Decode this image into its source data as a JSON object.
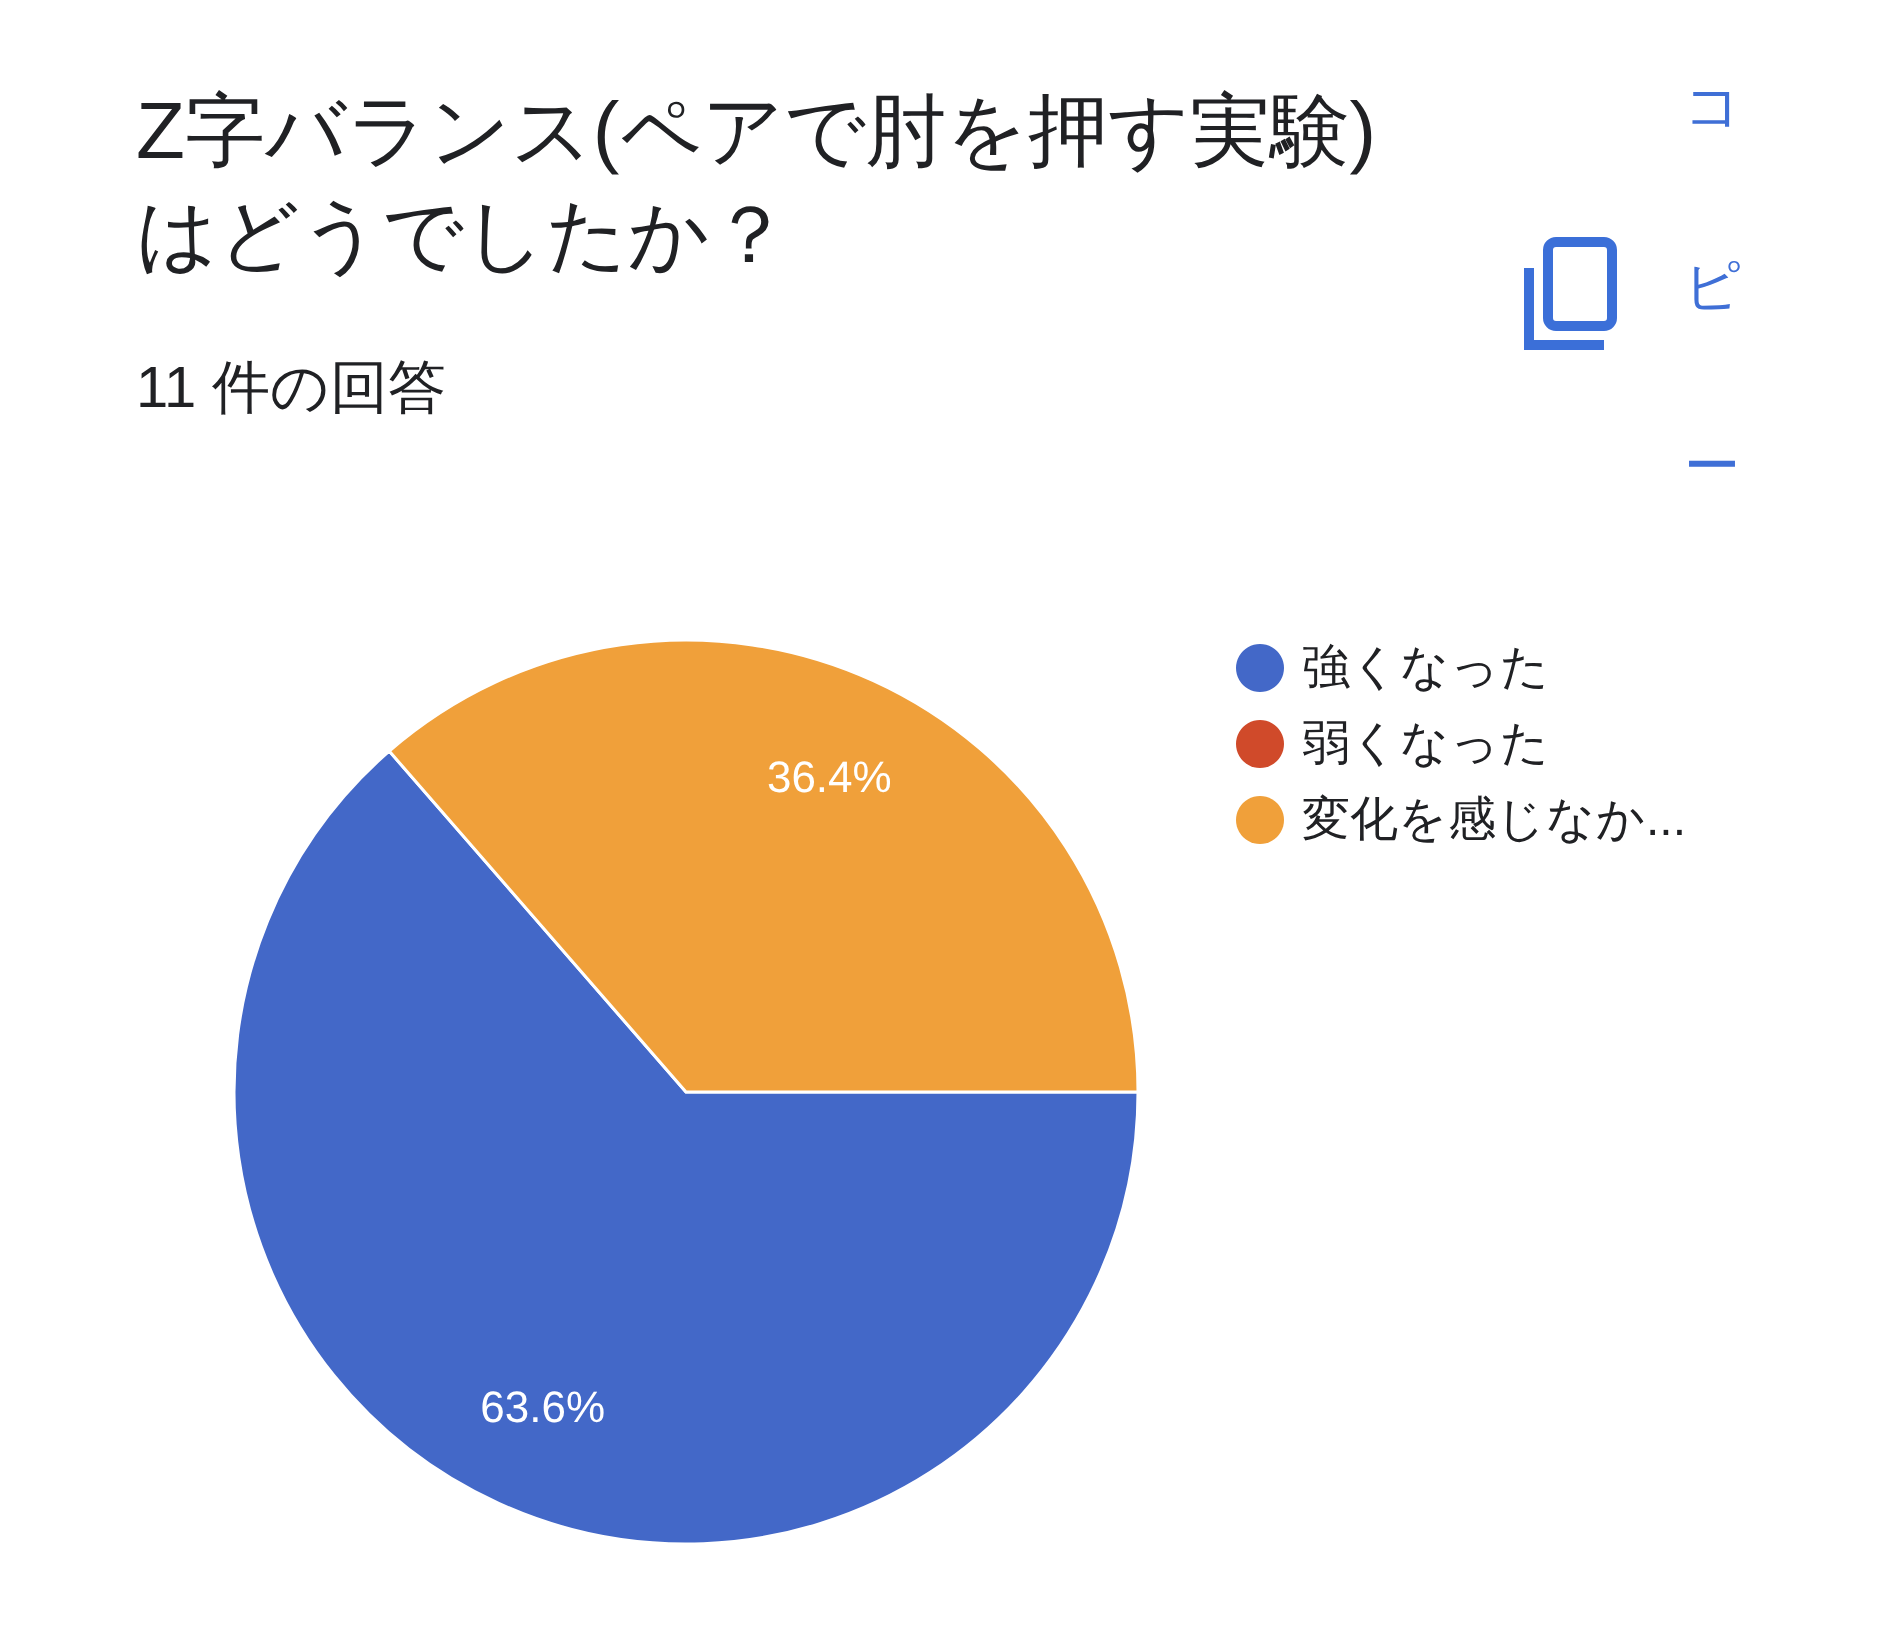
{
  "chart_data": {
    "type": "pie",
    "title": "Z字バランス(ペアで肘を押す実験)はどうでしたか？",
    "subtitle": "11 件の回答",
    "categories": [
      "強くなった",
      "弱くなった",
      "変化を感じなか..."
    ],
    "values": [
      63.6,
      0,
      36.4
    ],
    "colors": [
      "#4368c8",
      "#d04a2a",
      "#f0a03a"
    ],
    "value_labels": [
      "63.6%",
      null,
      "36.4%"
    ],
    "legend": "top right",
    "annotations": [
      "コピー"
    ]
  }
}
